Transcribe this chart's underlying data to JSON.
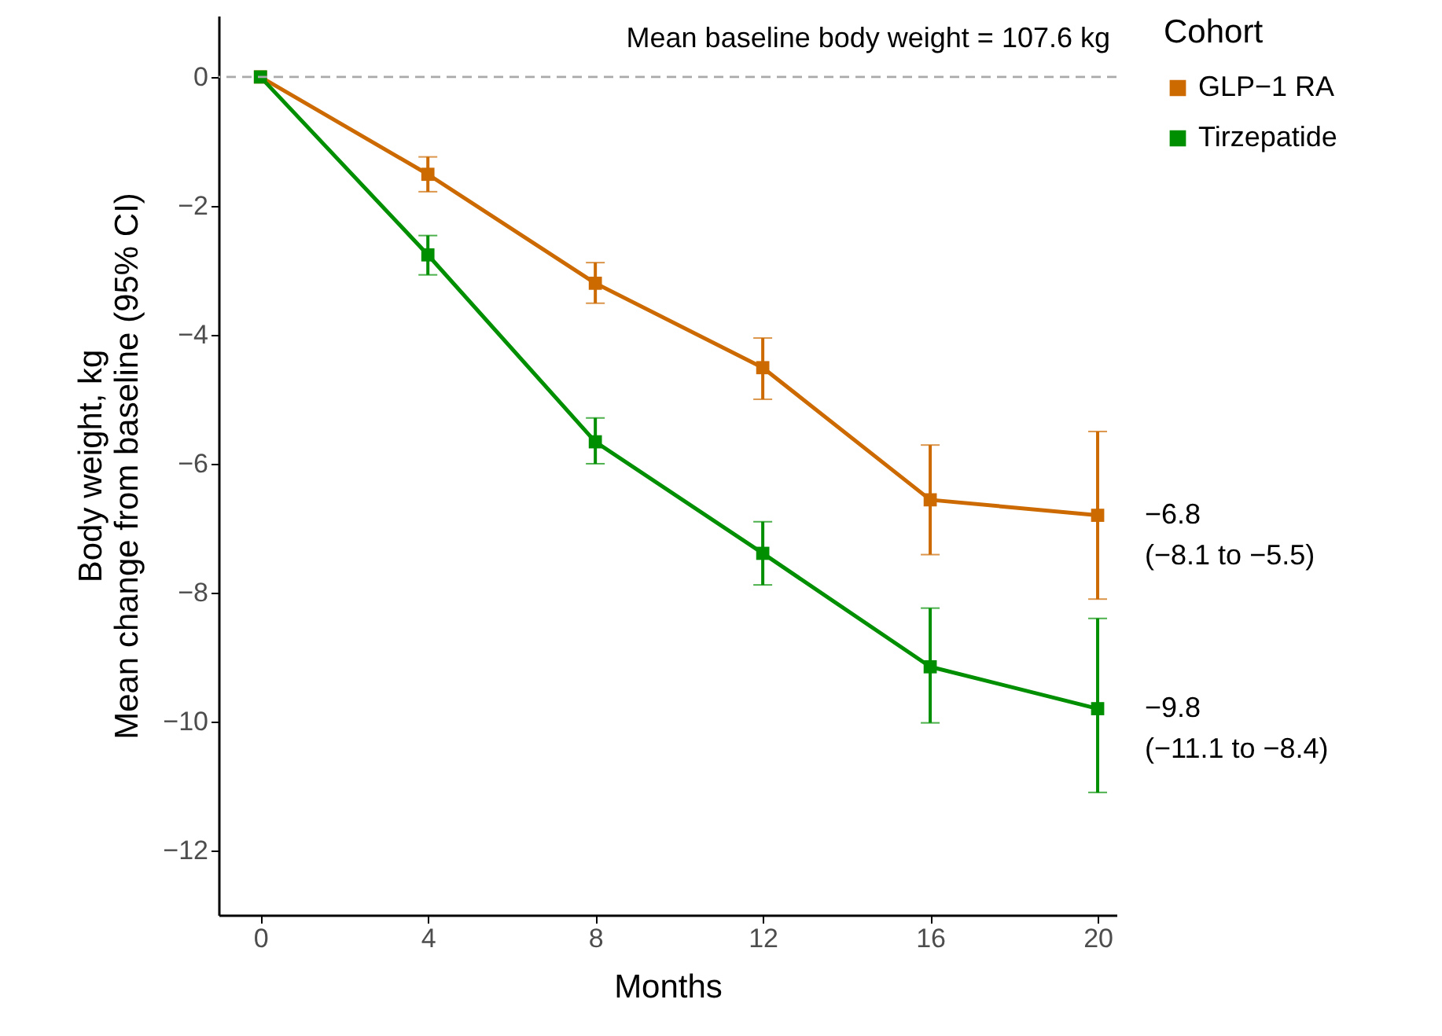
{
  "chart_data": {
    "type": "line",
    "xlabel": "Months",
    "ylabel": "Body weight, kg\nMean change from baseline (95% CI)",
    "legend_title": "Cohort",
    "x": [
      0,
      4,
      8,
      12,
      16,
      20
    ],
    "series": [
      {
        "name": "GLP−1 RA",
        "color": "#cc6a00",
        "values": [
          0,
          -1.51,
          -3.2,
          -4.51,
          -6.56,
          -6.8
        ],
        "errors": [
          null,
          [
            -1.78,
            -1.24
          ],
          [
            -3.51,
            -2.88
          ],
          [
            -5.0,
            -4.05
          ],
          [
            -7.41,
            -5.71
          ],
          [
            -8.1,
            -5.5
          ]
        ]
      },
      {
        "name": "Tirzepatide",
        "color": "#008f00",
        "values": [
          0,
          -2.76,
          -5.66,
          -7.39,
          -9.15,
          -9.8
        ],
        "errors": [
          null,
          [
            -3.07,
            -2.46
          ],
          [
            -6.0,
            -5.29
          ],
          [
            -7.88,
            -6.9
          ],
          [
            -10.02,
            -8.24
          ],
          [
            -11.1,
            -8.4
          ]
        ]
      }
    ],
    "xlim": [
      -1,
      20.45
    ],
    "xticks": [
      0,
      4,
      8,
      12,
      16,
      20
    ],
    "ylim": [
      -13,
      0.95
    ],
    "yticks": [
      {
        "value": -12,
        "label": "−12"
      },
      {
        "value": -10,
        "label": "−10"
      },
      {
        "value": -8,
        "label": "−8"
      },
      {
        "value": -6,
        "label": "−6"
      },
      {
        "value": -4,
        "label": "−4"
      },
      {
        "value": -2,
        "label": "−2"
      },
      0
    ],
    "ref_lines": [
      {
        "axis": "y",
        "value": 0,
        "color": "#aaaaaa",
        "line_style": "dashed"
      }
    ],
    "annotations": [
      "Mean baseline body weight = 107.6 kg",
      {
        "text": "−6.8\n(−8.1 to −5.5)",
        "x": 20,
        "y": -6.8
      },
      {
        "text": "−9.8\n(−11.1 to −8.4)",
        "x": 20,
        "y": -9.8
      }
    ],
    "legend": "right",
    "marker": "square",
    "line_style": "solid",
    "grid": false
  }
}
